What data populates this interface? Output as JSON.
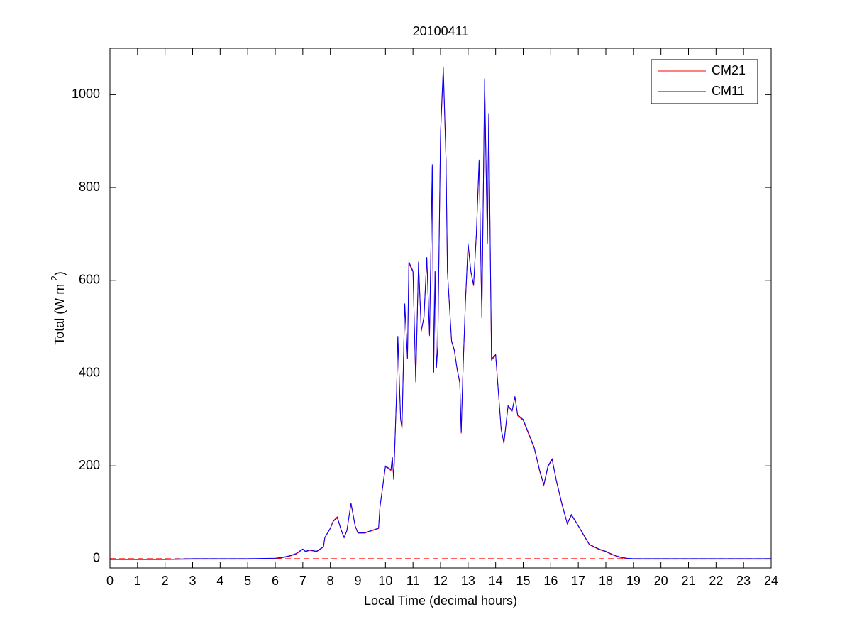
{
  "chart_data": {
    "type": "line",
    "title": "20100411",
    "xlabel": "Local Time (decimal hours)",
    "ylabel": [
      "Total (W m",
      "-2",
      ")"
    ],
    "xlim": [
      0,
      24
    ],
    "ylim": [
      -20,
      1100
    ],
    "xticks": [
      0,
      1,
      2,
      3,
      4,
      5,
      6,
      7,
      8,
      9,
      10,
      11,
      12,
      13,
      14,
      15,
      16,
      17,
      18,
      19,
      20,
      21,
      22,
      23,
      24
    ],
    "yticks": [
      0,
      200,
      400,
      600,
      800,
      1000
    ],
    "legend": "upper right",
    "reference_line": {
      "value": 0,
      "color": "#ff0000",
      "style": "dashed"
    },
    "x": [
      0,
      1,
      2,
      3,
      4,
      5,
      6,
      6.25,
      6.5,
      6.75,
      7,
      7.1,
      7.25,
      7.5,
      7.75,
      7.8,
      8,
      8.1,
      8.25,
      8.4,
      8.5,
      8.6,
      8.75,
      8.9,
      9,
      9.25,
      9.5,
      9.75,
      9.8,
      10,
      10.2,
      10.25,
      10.3,
      10.4,
      10.45,
      10.55,
      10.6,
      10.7,
      10.8,
      10.85,
      11,
      11.1,
      11.2,
      11.3,
      11.4,
      11.5,
      11.6,
      11.7,
      11.75,
      11.8,
      11.85,
      11.9,
      12,
      12.1,
      12.2,
      12.25,
      12.4,
      12.5,
      12.6,
      12.7,
      12.75,
      12.8,
      12.9,
      13,
      13.1,
      13.2,
      13.3,
      13.4,
      13.5,
      13.6,
      13.7,
      13.75,
      13.85,
      14,
      14.1,
      14.2,
      14.3,
      14.45,
      14.6,
      14.7,
      14.8,
      15,
      15.2,
      15.4,
      15.6,
      15.75,
      15.9,
      16.05,
      16.2,
      16.4,
      16.6,
      16.75,
      16.9,
      17,
      17.2,
      17.4,
      17.75,
      18,
      18.25,
      18.5,
      18.75,
      19,
      20,
      21,
      22,
      23,
      24
    ],
    "series": [
      {
        "name": "CM21",
        "color": "#ff0000",
        "values": [
          -2,
          -2,
          -2,
          -1,
          -1,
          -1,
          0,
          2,
          5,
          10,
          20,
          15,
          18,
          15,
          25,
          45,
          65,
          80,
          88,
          60,
          45,
          60,
          118,
          70,
          55,
          55,
          60,
          65,
          110,
          198,
          190,
          218,
          170,
          350,
          478,
          300,
          280,
          548,
          430,
          636,
          618,
          380,
          638,
          490,
          520,
          648,
          480,
          845,
          400,
          618,
          410,
          458,
          915,
          1050,
          855,
          618,
          468,
          448,
          408,
          378,
          270,
          378,
          548,
          675,
          618,
          588,
          698,
          855,
          518,
          1028,
          678,
          955,
          428,
          438,
          358,
          278,
          248,
          328,
          318,
          348,
          308,
          298,
          268,
          238,
          188,
          158,
          198,
          213,
          168,
          118,
          75,
          93,
          80,
          70,
          50,
          30,
          20,
          15,
          8,
          3,
          0,
          -1,
          -1,
          -1,
          -1,
          -1,
          -1
        ]
      },
      {
        "name": "CM11",
        "color": "#0000ff",
        "values": [
          -1,
          -1,
          -1,
          0,
          0,
          0,
          1,
          3,
          6,
          11,
          21,
          16,
          19,
          16,
          26,
          46,
          66,
          81,
          90,
          61,
          46,
          61,
          120,
          71,
          56,
          56,
          61,
          66,
          112,
          200,
          192,
          220,
          172,
          352,
          480,
          302,
          282,
          550,
          432,
          640,
          620,
          382,
          640,
          492,
          522,
          650,
          482,
          850,
          402,
          620,
          412,
          460,
          920,
          1060,
          860,
          620,
          470,
          450,
          410,
          380,
          272,
          380,
          550,
          680,
          620,
          590,
          700,
          860,
          520,
          1035,
          680,
          960,
          430,
          440,
          360,
          280,
          250,
          330,
          320,
          350,
          310,
          300,
          270,
          240,
          190,
          160,
          200,
          215,
          170,
          120,
          76,
          95,
          81,
          71,
          51,
          31,
          21,
          16,
          9,
          4,
          1,
          0,
          0,
          0,
          0,
          0,
          0
        ]
      }
    ]
  }
}
